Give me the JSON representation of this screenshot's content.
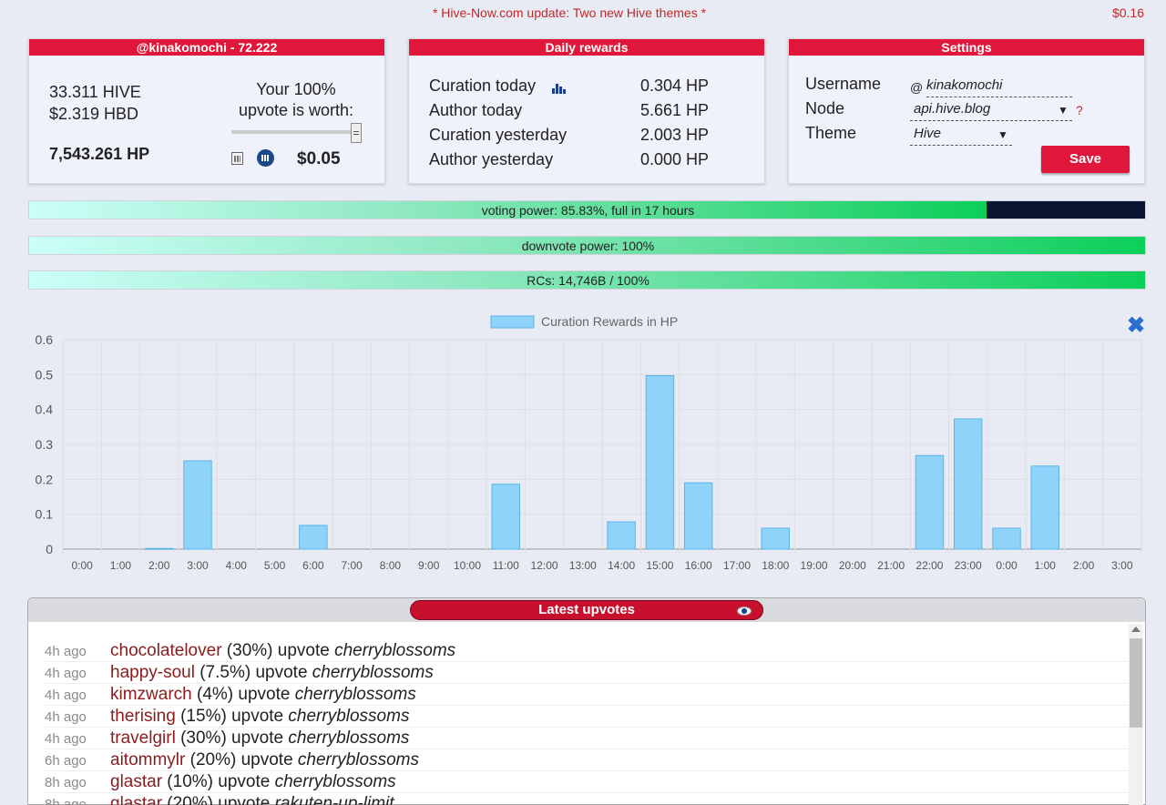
{
  "header": {
    "announcement": "* Hive-Now.com update: Two new Hive themes *",
    "price": "$0.16"
  },
  "account": {
    "title": "@kinakomochi - 72.222",
    "hive": "33.311 HIVE",
    "hbd": "$2.319 HBD",
    "hp": "7,543.261 HP",
    "worth_label_1": "Your 100%",
    "worth_label_2": "upvote is worth:",
    "worth_value": "$0.05",
    "slider_percent": 100
  },
  "rewards": {
    "title": "Daily rewards",
    "rows": [
      {
        "label": "Curation today",
        "value": "0.304 HP"
      },
      {
        "label": "Author today",
        "value": "5.661 HP"
      },
      {
        "label": "Curation yesterday",
        "value": "2.003 HP"
      },
      {
        "label": "Author yesterday",
        "value": "0.000 HP"
      }
    ]
  },
  "settings": {
    "title": "Settings",
    "username_label": "Username",
    "username_prefix": "@",
    "username_value": "kinakomochi",
    "node_label": "Node",
    "node_value": "api.hive.blog",
    "node_help": "?",
    "theme_label": "Theme",
    "theme_value": "Hive",
    "save_label": "Save"
  },
  "bars": {
    "voting": {
      "text": "voting power: 85.83%, full in 17 hours",
      "percent": 85.83
    },
    "downvote": {
      "text": "downvote power: 100%",
      "percent": 100
    },
    "rcs": {
      "text": "RCs: 14,746B / 100%",
      "percent": 100
    }
  },
  "chart_data": {
    "type": "bar",
    "legend": "Curation Rewards in HP",
    "legend_position": "top-center",
    "grid": true,
    "color": "#8fd3fb",
    "ylim": [
      0,
      0.6
    ],
    "yticks": [
      "0",
      "0.1",
      "0.2",
      "0.3",
      "0.4",
      "0.5",
      "0.6"
    ],
    "categories": [
      "0:00",
      "1:00",
      "2:00",
      "3:00",
      "4:00",
      "5:00",
      "6:00",
      "7:00",
      "8:00",
      "9:00",
      "10:00",
      "11:00",
      "12:00",
      "13:00",
      "14:00",
      "15:00",
      "16:00",
      "17:00",
      "18:00",
      "19:00",
      "20:00",
      "21:00",
      "22:00",
      "23:00",
      "0:00",
      "1:00",
      "2:00",
      "3:00"
    ],
    "values": [
      0,
      0,
      0.002,
      0.253,
      0,
      0,
      0.068,
      0,
      0,
      0,
      0,
      0.186,
      0,
      0,
      0.078,
      0.497,
      0.19,
      0,
      0.06,
      0,
      0,
      0,
      0.268,
      0.373,
      0.06,
      0.238,
      0,
      0
    ]
  },
  "upvotes": {
    "title": "Latest upvotes",
    "items": [
      {
        "time": "4h ago",
        "user": "chocolatelover",
        "pct": " (30%) upvote ",
        "author": "cherryblossoms"
      },
      {
        "time": "4h ago",
        "user": "happy-soul",
        "pct": " (7.5%) upvote ",
        "author": "cherryblossoms"
      },
      {
        "time": "4h ago",
        "user": "kimzwarch",
        "pct": " (4%) upvote ",
        "author": "cherryblossoms"
      },
      {
        "time": "4h ago",
        "user": "therising",
        "pct": " (15%) upvote ",
        "author": "cherryblossoms"
      },
      {
        "time": "4h ago",
        "user": "travelgirl",
        "pct": " (30%) upvote ",
        "author": "cherryblossoms"
      },
      {
        "time": "6h ago",
        "user": "aitommylr",
        "pct": " (20%) upvote ",
        "author": "cherryblossoms"
      },
      {
        "time": "8h ago",
        "user": "glastar",
        "pct": " (10%) upvote ",
        "author": "cherryblossoms"
      },
      {
        "time": "8h ago",
        "user": "glastar",
        "pct": " (20%) upvote ",
        "author": "rakuten-up-limit"
      }
    ]
  }
}
